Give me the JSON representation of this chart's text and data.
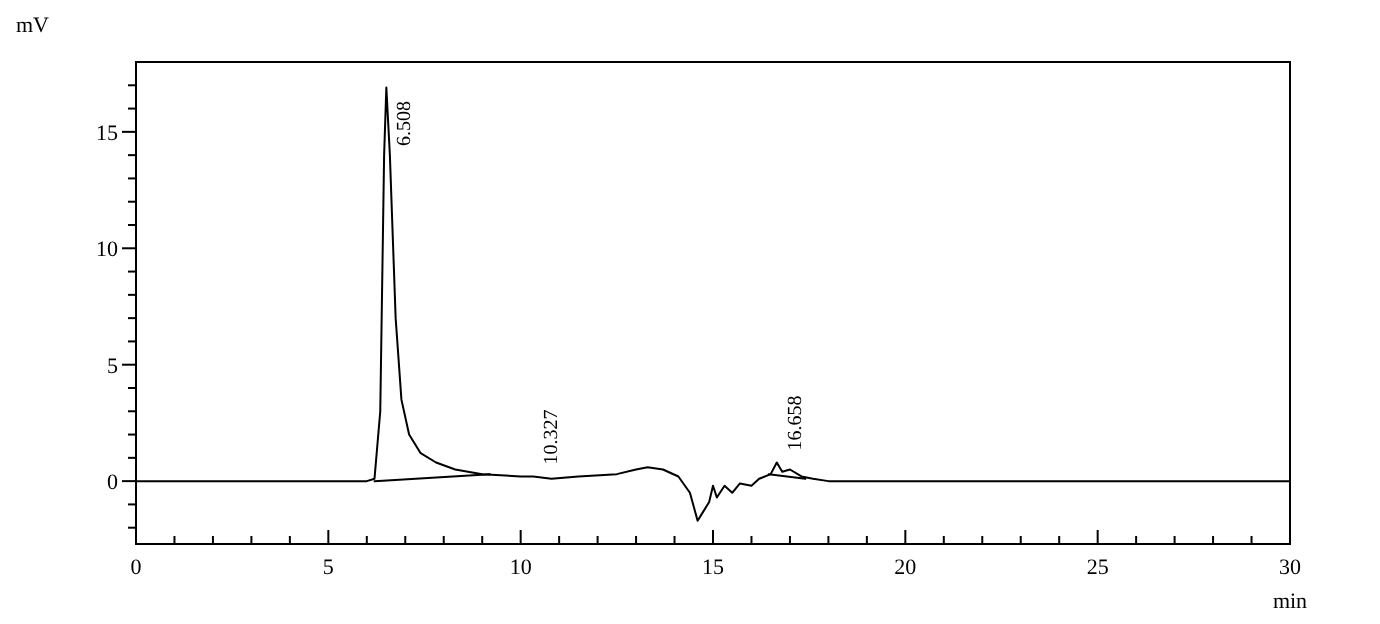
{
  "chart_data": {
    "type": "line",
    "xlabel": "min",
    "ylabel": "mV",
    "xlim": [
      0,
      30
    ],
    "ylim": [
      -2.7,
      18
    ],
    "xticks": [
      0,
      {
        "value": 1,
        "label": null
      },
      {
        "value": 2,
        "label": null
      },
      {
        "value": 3,
        "label": null
      },
      {
        "value": 4,
        "label": null
      },
      5,
      {
        "value": 6,
        "label": null
      },
      {
        "value": 7,
        "label": null
      },
      {
        "value": 8,
        "label": null
      },
      {
        "value": 9,
        "label": null
      },
      10,
      {
        "value": 11,
        "label": null
      },
      {
        "value": 12,
        "label": null
      },
      {
        "value": 13,
        "label": null
      },
      {
        "value": 14,
        "label": null
      },
      15,
      {
        "value": 16,
        "label": null
      },
      {
        "value": 17,
        "label": null
      },
      {
        "value": 18,
        "label": null
      },
      {
        "value": 19,
        "label": null
      },
      20,
      {
        "value": 21,
        "label": null
      },
      {
        "value": 22,
        "label": null
      },
      {
        "value": 23,
        "label": null
      },
      {
        "value": 24,
        "label": null
      },
      25,
      {
        "value": 26,
        "label": null
      },
      {
        "value": 27,
        "label": null
      },
      {
        "value": 28,
        "label": null
      },
      {
        "value": 29,
        "label": null
      },
      30
    ],
    "yticks": [
      {
        "value": -2,
        "label": null
      },
      {
        "value": -1,
        "label": null
      },
      0,
      {
        "value": 1,
        "label": null
      },
      {
        "value": 2,
        "label": null
      },
      {
        "value": 3,
        "label": null
      },
      {
        "value": 4,
        "label": null
      },
      5,
      {
        "value": 6,
        "label": null
      },
      {
        "value": 7,
        "label": null
      },
      {
        "value": 8,
        "label": null
      },
      {
        "value": 9,
        "label": null
      },
      10,
      {
        "value": 11,
        "label": null
      },
      {
        "value": 12,
        "label": null
      },
      {
        "value": 13,
        "label": null
      },
      {
        "value": 14,
        "label": null
      },
      15,
      {
        "value": 16,
        "label": null
      },
      {
        "value": 17,
        "label": null
      }
    ],
    "grid": false,
    "series": [
      {
        "color": "#000000",
        "x": [
          0,
          5,
          6,
          6.2,
          6.35,
          6.45,
          6.508,
          6.6,
          6.75,
          6.9,
          7.1,
          7.4,
          7.8,
          8.3,
          9,
          10,
          10.327,
          10.8,
          11.5,
          12.5,
          13,
          13.3,
          13.7,
          14.1,
          14.4,
          14.6,
          14.75,
          14.9,
          15,
          15.1,
          15.3,
          15.5,
          15.7,
          16,
          16.2,
          16.5,
          16.658,
          16.8,
          17,
          17.3,
          17.6,
          18,
          30
        ],
        "values": [
          0,
          0,
          0,
          0.1,
          3,
          14,
          16.9,
          14,
          7,
          3.5,
          2,
          1.2,
          0.8,
          0.5,
          0.3,
          0.2,
          0.2,
          0.1,
          0.2,
          0.3,
          0.5,
          0.6,
          0.5,
          0.2,
          -0.5,
          -1.7,
          -1.3,
          -0.9,
          -0.2,
          -0.7,
          -0.2,
          -0.5,
          -0.1,
          -0.2,
          0.1,
          0.3,
          0.8,
          0.4,
          0.5,
          0.2,
          0.1,
          0,
          0
        ]
      },
      {
        "color": "#000000",
        "x": [
          6.2,
          9.2,
          9.3,
          16.45,
          17.4
        ],
        "values": [
          0,
          0.3,
          null,
          0.3,
          0.1
        ]
      }
    ],
    "annotations": [
      {
        "text": "6.508",
        "x": 6.508,
        "y": 16.9
      },
      {
        "text": "10.327",
        "x": 10.327,
        "y": 0.2
      },
      {
        "text": "16.658",
        "x": 16.658,
        "y": 0.8
      }
    ]
  }
}
